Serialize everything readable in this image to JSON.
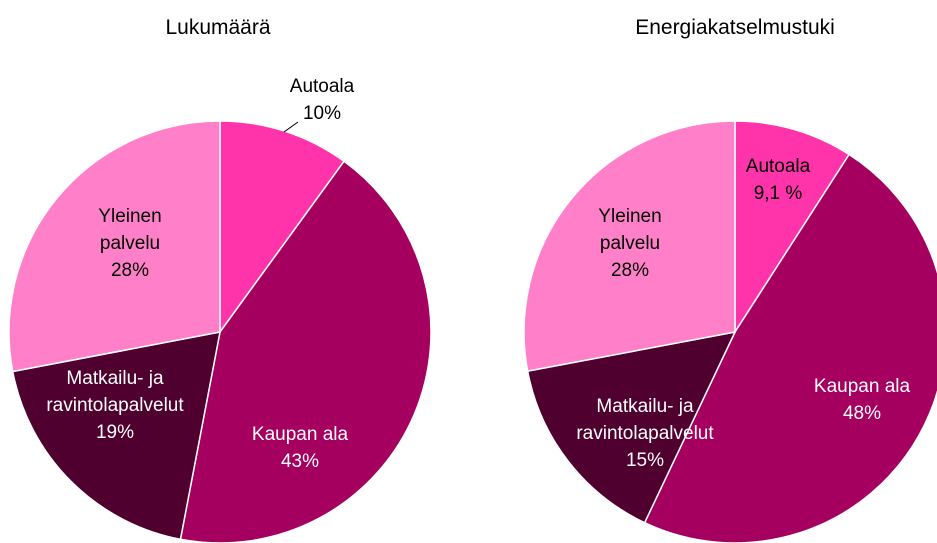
{
  "chart_data": [
    {
      "type": "pie",
      "title": "Lukumäärä",
      "categories": [
        "Autoala",
        "Kaupan ala",
        "Matkailu- ja ravintolapalvelut",
        "Yleinen palvelu"
      ],
      "values": [
        10,
        43,
        19,
        28
      ],
      "value_labels": [
        "10%",
        "43%",
        "19%",
        "28%"
      ],
      "colors": [
        "#ff33aa",
        "#a50060",
        "#50002e",
        "#ff80c8"
      ]
    },
    {
      "type": "pie",
      "title": "Energiakatselmustuki",
      "categories": [
        "Autoala",
        "Kaupan ala",
        "Matkailu- ja ravintolapalvelut",
        "Yleinen palvelu"
      ],
      "values": [
        9.1,
        48,
        15,
        28
      ],
      "value_labels": [
        "9,1 %",
        "48%",
        "15%",
        "28%"
      ],
      "colors": [
        "#ff33aa",
        "#a50060",
        "#50002e",
        "#ff80c8"
      ]
    }
  ]
}
